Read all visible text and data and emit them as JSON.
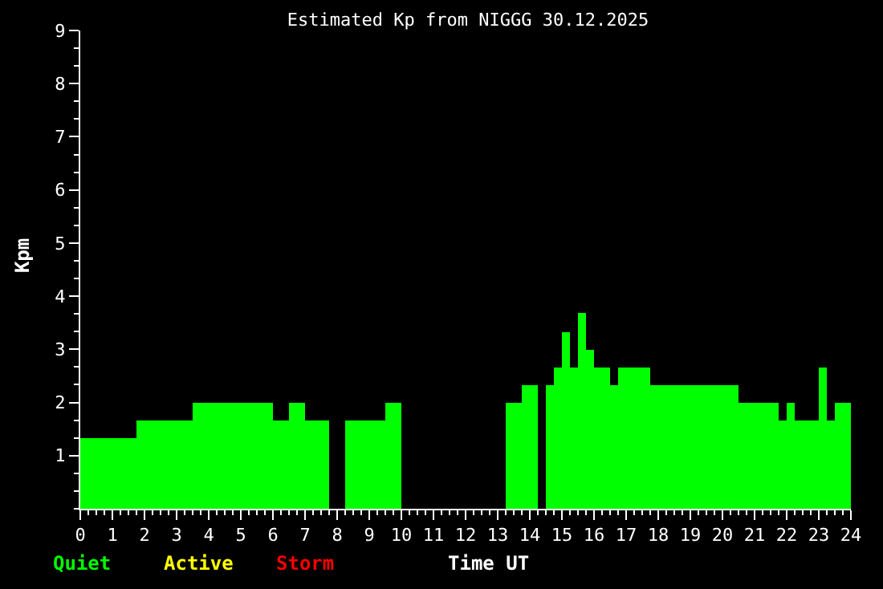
{
  "chart_data": {
    "type": "histogram",
    "title": "Estimated Kp from NIGGG 30.12.2025",
    "xlabel": "Time UT",
    "ylabel": "Kpm",
    "bins": [
      0,
      1.75,
      3.5,
      6.0,
      6.5,
      7.0,
      7.75,
      8.25,
      9.5,
      10.0,
      13.25,
      13.75,
      14.25,
      14.5,
      14.75,
      15.0,
      15.25,
      15.5,
      15.75,
      16.0,
      16.5,
      16.75,
      17.75,
      20.5,
      21.75,
      22.0,
      22.25,
      23.0,
      23.25,
      23.5,
      24.0
    ],
    "series": [
      {
        "name": "Quiet",
        "color": "#00ff00",
        "values": [
          1.33,
          1.67,
          2.0,
          1.67,
          2.0,
          1.67,
          null,
          1.67,
          2.0,
          null,
          2.0,
          2.33,
          null,
          2.33,
          2.67,
          3.33,
          2.67,
          3.67,
          3.0,
          2.67,
          2.33,
          2.67,
          2.33,
          2.0,
          1.67,
          2.0,
          1.67,
          2.67,
          1.67,
          2.0
        ]
      }
    ],
    "xlim": [
      0,
      24
    ],
    "xticks": [
      0,
      1,
      2,
      3,
      4,
      5,
      6,
      7,
      8,
      9,
      10,
      11,
      12,
      13,
      14,
      15,
      16,
      17,
      18,
      19,
      20,
      21,
      22,
      23,
      24
    ],
    "ylim": [
      0,
      9
    ],
    "yticks": [
      1,
      2,
      3,
      4,
      5,
      6,
      7,
      8,
      9
    ],
    "grid": false,
    "legend": "bottom left",
    "annotations": [
      "Active",
      "Storm"
    ]
  }
}
